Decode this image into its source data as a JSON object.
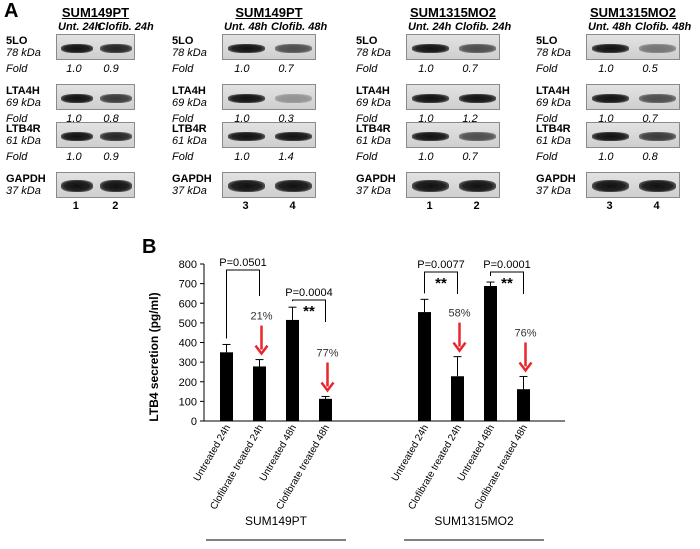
{
  "panel_a": {
    "letter": "A",
    "fold_label": "Fold",
    "blots": [
      {
        "title": "SUM149PT",
        "conditions": [
          "Unt. 24h",
          "Clofib. 24h"
        ],
        "lanes": [
          "1",
          "2"
        ],
        "rows": [
          {
            "name": "5LO",
            "kda": "78 kDa",
            "folds": [
              "1.0",
              "0.9"
            ]
          },
          {
            "name": "LTA4H",
            "kda": "69 kDa",
            "folds": [
              "1.0",
              "0.8"
            ]
          },
          {
            "name": "LTB4R",
            "kda": "61 kDa",
            "folds": [
              "1.0",
              "0.9"
            ]
          },
          {
            "name": "GAPDH",
            "kda": "37 kDa",
            "folds": null
          }
        ]
      },
      {
        "title": "SUM149PT",
        "conditions": [
          "Unt. 48h",
          "Clofib. 48h"
        ],
        "lanes": [
          "3",
          "4"
        ],
        "rows": [
          {
            "name": "5LO",
            "kda": "78 kDa",
            "folds": [
              "1.0",
              "0.7"
            ]
          },
          {
            "name": "LTA4H",
            "kda": "69 kDa",
            "folds": [
              "1.0",
              "0.3"
            ]
          },
          {
            "name": "LTB4R",
            "kda": "61 kDa",
            "folds": [
              "1.0",
              "1.4"
            ]
          },
          {
            "name": "GAPDH",
            "kda": "37 kDa",
            "folds": null
          }
        ]
      },
      {
        "title": "SUM1315MO2",
        "conditions": [
          "Unt. 24h",
          "Clofib. 24h"
        ],
        "lanes": [
          "1",
          "2"
        ],
        "rows": [
          {
            "name": "5LO",
            "kda": "78 kDa",
            "folds": [
              "1.0",
              "0.7"
            ]
          },
          {
            "name": "LTA4H",
            "kda": "69 kDa",
            "folds": [
              "1.0",
              "1.2"
            ]
          },
          {
            "name": "LTB4R",
            "kda": "61 kDa",
            "folds": [
              "1.0",
              "0.7"
            ]
          },
          {
            "name": "GAPDH",
            "kda": "37 kDa",
            "folds": null
          }
        ]
      },
      {
        "title": "SUM1315MO2",
        "conditions": [
          "Unt. 48h",
          "Clofib. 48h"
        ],
        "lanes": [
          "3",
          "4"
        ],
        "rows": [
          {
            "name": "5LO",
            "kda": "78 kDa",
            "folds": [
              "1.0",
              "0.5"
            ]
          },
          {
            "name": "LTA4H",
            "kda": "69 kDa",
            "folds": [
              "1.0",
              "0.7"
            ]
          },
          {
            "name": "LTB4R",
            "kda": "61 kDa",
            "folds": [
              "1.0",
              "0.8"
            ]
          },
          {
            "name": "GAPDH",
            "kda": "37 kDa",
            "folds": null
          }
        ]
      }
    ]
  },
  "panel_b": {
    "letter": "B"
  },
  "chart_data": {
    "type": "bar",
    "ylabel": "LTB4 secretion (pg/ml)",
    "ylim": [
      0,
      800
    ],
    "yticks": [
      0,
      100,
      200,
      300,
      400,
      500,
      600,
      700,
      800
    ],
    "groups": [
      {
        "name": "SUM149PT",
        "categories": [
          "Untreated 24h",
          "Clofibrate treated 24h",
          "Untreated 48h",
          "Clofibrate treated 48h"
        ],
        "values": [
          350,
          278,
          515,
          113
        ],
        "errors": [
          40,
          35,
          65,
          12
        ],
        "comparisons": [
          {
            "pair": [
              0,
              1
            ],
            "pvalue": "P=0.0501",
            "stars": ""
          },
          {
            "pair": [
              2,
              3
            ],
            "pvalue": "P=0.0004",
            "stars": "**"
          }
        ],
        "reductions": [
          {
            "bar": 1,
            "label": "21%"
          },
          {
            "bar": 3,
            "label": "77%"
          }
        ]
      },
      {
        "name": "SUM1315MO2",
        "categories": [
          "Untreated 24h",
          "Clofibrate treated 24h",
          "Untreated 48h",
          "Clofibrate treated 48h"
        ],
        "values": [
          555,
          228,
          688,
          162
        ],
        "errors": [
          65,
          100,
          20,
          65
        ],
        "comparisons": [
          {
            "pair": [
              0,
              1
            ],
            "pvalue": "P=0.0077",
            "stars": "**"
          },
          {
            "pair": [
              2,
              3
            ],
            "pvalue": "P=0.0001",
            "stars": "**"
          }
        ],
        "reductions": [
          {
            "bar": 1,
            "label": "58%"
          },
          {
            "bar": 3,
            "label": "76%"
          }
        ]
      }
    ],
    "arrow_color": "#e8262b",
    "bar_color": "#000000"
  }
}
